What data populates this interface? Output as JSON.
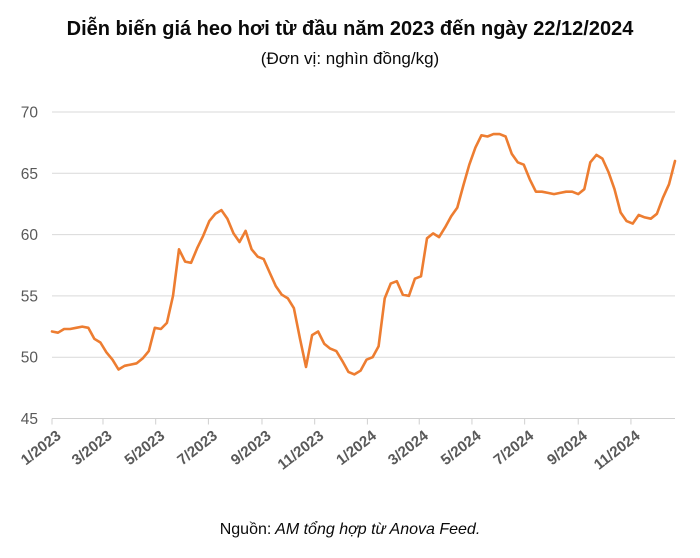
{
  "header": {
    "title": "Diễn biến giá heo hơi từ đầu năm 2023 đến ngày 22/12/2024",
    "subtitle": "(Đơn vị: nghìn đồng/kg)"
  },
  "footer": {
    "source_label": "Nguồn:",
    "source_text": " AM tổng hợp từ Anova Feed."
  },
  "chart_data": {
    "type": "line",
    "title": "Diễn biến giá heo hơi từ đầu năm 2023 đến ngày 22/12/2024",
    "ylabel": "nghìn đồng/kg",
    "xlabel": "",
    "ylim": [
      45,
      70
    ],
    "yticks": [
      45,
      50,
      55,
      60,
      65,
      70
    ],
    "xtick_labels": [
      "1/2023",
      "3/2023",
      "5/2023",
      "7/2023",
      "9/2023",
      "11/2023",
      "1/2024",
      "3/2024",
      "5/2024",
      "7/2024",
      "9/2024",
      "11/2024"
    ],
    "x_start": "2023-01-01",
    "x_end": "2024-12-22",
    "x_step_days": 7,
    "grid": true,
    "legend": "none",
    "line_color": "#ED7D31",
    "grid_color": "#D9D9D9",
    "axis_color": "#D0D0D0",
    "label_color": "#595959",
    "series": [
      {
        "name": "Giá heo hơi",
        "values": [
          52.1,
          52.0,
          52.3,
          52.3,
          52.4,
          52.5,
          52.4,
          51.5,
          51.2,
          50.4,
          49.8,
          49.0,
          49.3,
          49.4,
          49.5,
          49.9,
          50.5,
          52.4,
          52.3,
          52.8,
          55.0,
          58.8,
          57.8,
          57.7,
          58.9,
          59.9,
          61.1,
          61.7,
          62.0,
          61.3,
          60.1,
          59.4,
          60.3,
          58.8,
          58.2,
          58.0,
          56.9,
          55.8,
          55.1,
          54.8,
          54.0,
          51.5,
          49.2,
          51.8,
          52.1,
          51.1,
          50.7,
          50.5,
          49.7,
          48.8,
          48.6,
          48.9,
          49.8,
          50.0,
          50.9,
          54.8,
          56.0,
          56.2,
          55.1,
          55.0,
          56.4,
          56.6,
          59.7,
          60.1,
          59.8,
          60.6,
          61.5,
          62.2,
          64.0,
          65.7,
          67.1,
          68.1,
          68.0,
          68.2,
          68.2,
          68.0,
          66.6,
          65.9,
          65.7,
          64.5,
          63.5,
          63.5,
          63.4,
          63.3,
          63.4,
          63.5,
          63.5,
          63.3,
          63.7,
          65.9,
          66.5,
          66.2,
          65.1,
          63.7,
          61.8,
          61.1,
          60.9,
          61.6,
          61.4,
          61.3,
          61.7,
          63.0,
          64.1,
          66.0
        ]
      }
    ]
  }
}
